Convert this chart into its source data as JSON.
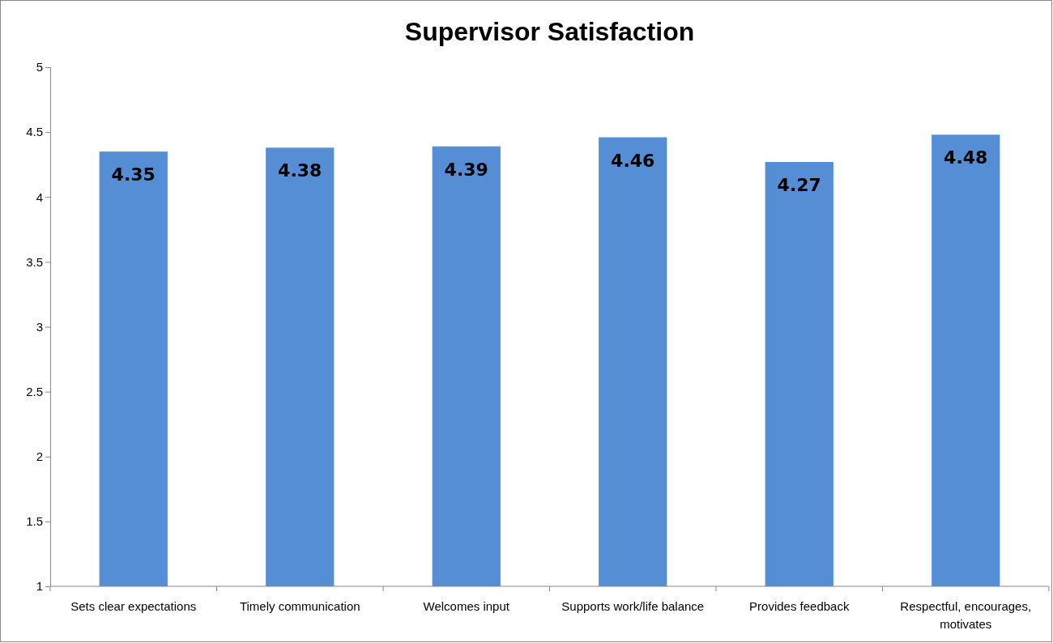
{
  "chart_data": {
    "type": "bar",
    "title": "Supervisor Satisfaction",
    "categories": [
      "Sets clear expectations",
      "Timely communication",
      "Welcomes input",
      "Supports work/life balance",
      "Provides feedback",
      "Respectful, encourages, motivates"
    ],
    "values": [
      4.35,
      4.38,
      4.39,
      4.46,
      4.27,
      4.48
    ],
    "color": "#558ed5",
    "ylim": [
      1,
      5
    ],
    "yticks": [
      1,
      1.5,
      2,
      2.5,
      3,
      3.5,
      4,
      4.5,
      5
    ],
    "grid": false,
    "data_labels": true
  }
}
